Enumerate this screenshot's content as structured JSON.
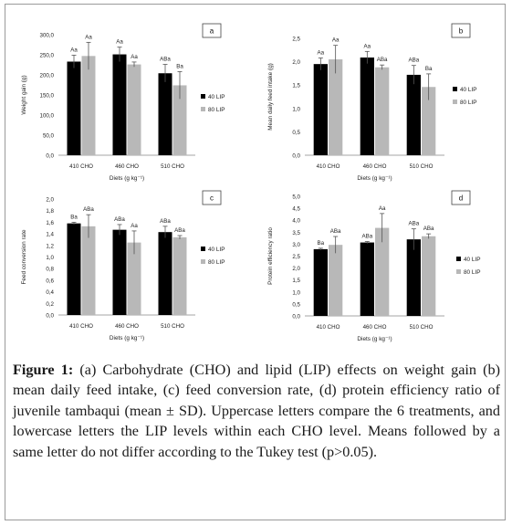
{
  "colors": {
    "series_40": "#000000",
    "series_80": "#b8b8b8",
    "axis": "#888888",
    "text": "#222222"
  },
  "chart_data": [
    {
      "id": "a",
      "type": "bar",
      "panel_label": "a",
      "ylabel": "Weight gain (g)",
      "xlabel": "Diets (g kg⁻¹)",
      "categories": [
        "410 CHO",
        "460 CHO",
        "510 CHO"
      ],
      "ylim": [
        0,
        300
      ],
      "yticks": [
        "0,0",
        "50,0",
        "100,0",
        "150,0",
        "200,0",
        "250,0",
        "300,0"
      ],
      "series": [
        {
          "name": "40  LIP",
          "values": [
            233,
            251,
            204
          ],
          "errors": [
            16,
            18,
            22
          ],
          "letters": [
            "Aa",
            "Aa",
            "ABa"
          ]
        },
        {
          "name": "80 LIP",
          "values": [
            247,
            226,
            174
          ],
          "errors": [
            34,
            6,
            34
          ],
          "letters": [
            "Aa",
            "Aa",
            "Ba"
          ]
        }
      ]
    },
    {
      "id": "b",
      "type": "bar",
      "panel_label": "b",
      "ylabel": "Mean daily feed intake (g)",
      "xlabel": "Diets (g kg⁻¹)",
      "categories": [
        "410 CHO",
        "460 CHO",
        "510 CHO"
      ],
      "ylim": [
        0,
        2.5
      ],
      "yticks": [
        "0,0",
        "0,5",
        "1,0",
        "1,5",
        "2,0",
        "2,5"
      ],
      "series": [
        {
          "name": "40  LIP",
          "values": [
            1.95,
            2.09,
            1.72
          ],
          "errors": [
            0.13,
            0.13,
            0.2
          ],
          "letters": [
            "Aa",
            "Aa",
            "ABa"
          ]
        },
        {
          "name": "80 LIP",
          "values": [
            2.05,
            1.88,
            1.46
          ],
          "errors": [
            0.3,
            0.05,
            0.28
          ],
          "letters": [
            "Aa",
            "ABa",
            "Ba"
          ]
        }
      ]
    },
    {
      "id": "c",
      "type": "bar",
      "panel_label": "c",
      "ylabel": "Feed conversion rate",
      "xlabel": "Diets (g kg⁻¹)",
      "categories": [
        "410 CHO",
        "460 CHO",
        "510 CHO"
      ],
      "ylim": [
        0,
        2
      ],
      "yticks": [
        "0,0",
        "0,2",
        "0,4",
        "0,6",
        "0,8",
        "1,0",
        "1,2",
        "1,4",
        "1,6",
        "1,8",
        "2,0"
      ],
      "series": [
        {
          "name": "40  LIP",
          "values": [
            1.58,
            1.47,
            1.43
          ],
          "errors": [
            0.02,
            0.09,
            0.1
          ],
          "letters": [
            "Ba",
            "ABa",
            "ABa"
          ]
        },
        {
          "name": "80 LIP",
          "values": [
            1.53,
            1.25,
            1.34
          ],
          "errors": [
            0.2,
            0.2,
            0.03
          ],
          "letters": [
            "ABa",
            "Aa",
            "ABa"
          ]
        }
      ]
    },
    {
      "id": "d",
      "type": "bar",
      "panel_label": "d",
      "ylabel": "Protein efficiency ratio",
      "xlabel": "Diets (g kg⁻¹)",
      "categories": [
        "410 CHO",
        "460 CHO",
        "510 CHO"
      ],
      "ylim": [
        0,
        5
      ],
      "yticks": [
        "0,0",
        "0,5",
        "1,0",
        "1,5",
        "2,0",
        "2,5",
        "3,0",
        "3,5",
        "4,0",
        "4,5",
        "5,0"
      ],
      "series": [
        {
          "name": "40 LIP",
          "values": [
            2.79,
            3.07,
            3.2
          ],
          "errors": [
            0.04,
            0.04,
            0.44
          ],
          "letters": [
            "Ba",
            "ABa",
            "ABa"
          ]
        },
        {
          "name": "80 LIP",
          "values": [
            2.97,
            3.68,
            3.33
          ],
          "errors": [
            0.35,
            0.6,
            0.1
          ],
          "letters": [
            "ABa",
            "Aa",
            "ABa"
          ]
        }
      ]
    }
  ],
  "caption": {
    "label": "Figure 1:",
    "text": " (a) Carbohydrate (CHO) and lipid (LIP) effects on weight gain (b) mean daily feed intake, (c) feed conversion rate, (d) protein efficiency ratio of juvenile tambaqui (mean ± SD). Uppercase letters compare the 6 treatments, and lowercase letters the LIP levels within each CHO level. Means followed by a same letter do not differ according to the Tukey test (p>0.05)."
  }
}
